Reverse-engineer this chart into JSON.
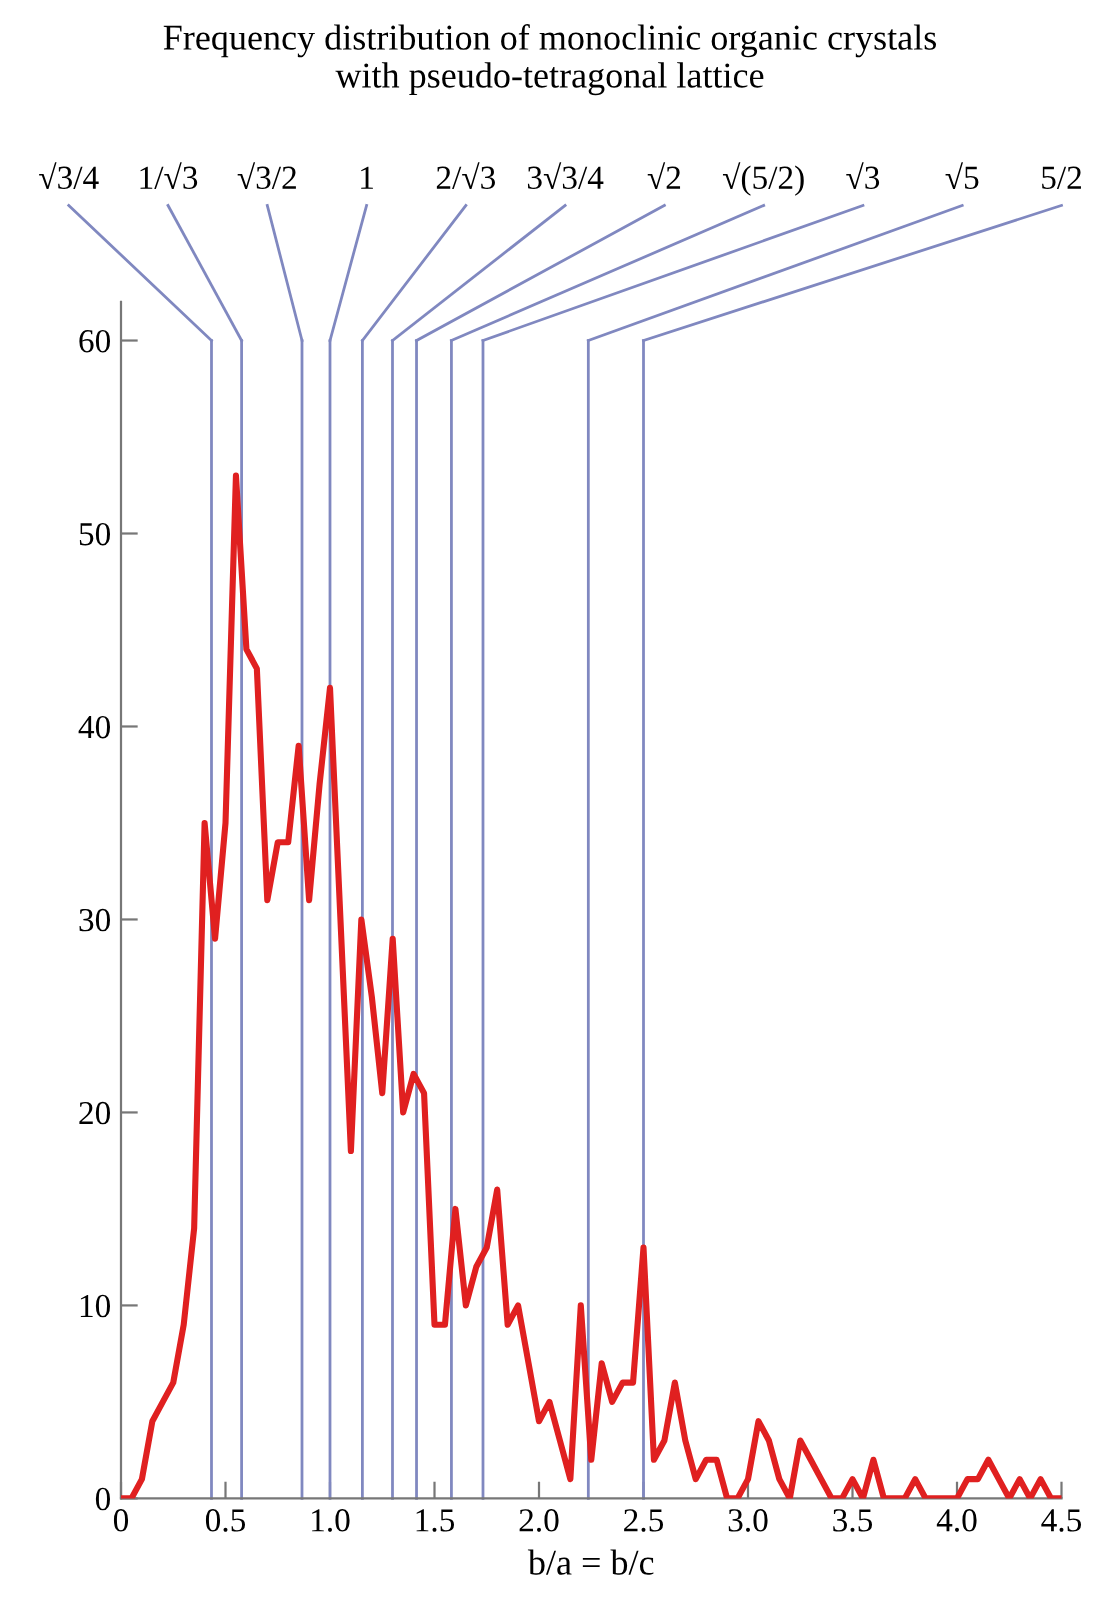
{
  "chart_data": {
    "type": "line",
    "title": "Frequency distribution of monoclinic organic crystals\nwith pseudo-tetragonal lattice",
    "xlabel": "b/a = b/c",
    "x": [
      0,
      0.05,
      0.1,
      0.15,
      0.2,
      0.25,
      0.3,
      0.35,
      0.4,
      0.45,
      0.5,
      0.55,
      0.6,
      0.65,
      0.7,
      0.75,
      0.8,
      0.85,
      0.9,
      0.95,
      1.0,
      1.05,
      1.1,
      1.15,
      1.2,
      1.25,
      1.3,
      1.35,
      1.4,
      1.45,
      1.5,
      1.55,
      1.6,
      1.65,
      1.7,
      1.75,
      1.8,
      1.85,
      1.9,
      1.95,
      2.0,
      2.05,
      2.1,
      2.15,
      2.2,
      2.25,
      2.3,
      2.35,
      2.4,
      2.45,
      2.5,
      2.55,
      2.6,
      2.65,
      2.7,
      2.75,
      2.8,
      2.85,
      2.9,
      2.95,
      3.0,
      3.05,
      3.1,
      3.15,
      3.2,
      3.25,
      3.3,
      3.35,
      3.4,
      3.45,
      3.5,
      3.55,
      3.6,
      3.65,
      3.7,
      3.75,
      3.8,
      3.85,
      3.9,
      3.95,
      4.0,
      4.05,
      4.1,
      4.15,
      4.2,
      4.25,
      4.3,
      4.35,
      4.4,
      4.45,
      4.5
    ],
    "series": [
      {
        "color": "#e02020",
        "values": [
          0,
          0,
          1,
          4,
          5,
          6,
          9,
          14,
          35,
          29,
          35,
          53,
          44,
          43,
          31,
          34,
          34,
          39,
          31,
          37,
          42,
          30,
          18,
          30,
          26,
          21,
          29,
          20,
          22,
          21,
          9,
          9,
          15,
          10,
          12,
          13,
          16,
          9,
          10,
          7,
          4,
          5,
          3,
          1,
          10,
          2,
          7,
          5,
          6,
          6,
          13,
          2,
          3,
          6,
          3,
          1,
          2,
          2,
          0,
          0,
          1,
          4,
          3,
          1,
          0,
          3,
          2,
          1,
          0,
          0,
          1,
          0,
          2,
          0,
          0,
          0,
          1,
          0,
          0,
          0,
          0,
          1,
          1,
          2,
          1,
          0,
          1,
          0,
          1,
          0,
          0
        ]
      }
    ],
    "xlim": [
      0,
      4.5
    ],
    "ylim": [
      0,
      62
    ],
    "xticks": [
      0,
      {
        "value": 0.5,
        "label": "0.5"
      },
      {
        "value": 1,
        "label": "1.0"
      },
      {
        "value": 1.5,
        "label": "1.5"
      },
      {
        "value": 2,
        "label": "2.0"
      },
      {
        "value": 2.5,
        "label": "2.5"
      },
      {
        "value": 3,
        "label": "3.0"
      },
      {
        "value": 3.5,
        "label": "3.5"
      },
      {
        "value": 4,
        "label": "4.0"
      },
      {
        "value": 4.5,
        "label": "4.5"
      }
    ],
    "yticks": [
      0,
      10,
      20,
      30,
      40,
      50,
      60
    ],
    "ref_lines": [
      {
        "axis": "x",
        "value": 0.433,
        "label": "√3/4",
        "color": "#8088c0"
      },
      {
        "axis": "x",
        "value": 0.577,
        "label": "1/√3",
        "color": "#8088c0"
      },
      {
        "axis": "x",
        "value": 0.866,
        "label": "√3/2",
        "color": "#8088c0"
      },
      {
        "axis": "x",
        "value": 1,
        "label": "1",
        "color": "#8088c0"
      },
      {
        "axis": "x",
        "value": 1.155,
        "label": "2/√3",
        "color": "#8088c0"
      },
      {
        "axis": "x",
        "value": 1.299,
        "label": "3√3/4",
        "color": "#8088c0"
      },
      {
        "axis": "x",
        "value": 1.414,
        "label": "√2",
        "color": "#8088c0"
      },
      {
        "axis": "x",
        "value": 1.581,
        "label": "√(5/2)",
        "color": "#8088c0"
      },
      {
        "axis": "x",
        "value": 1.732,
        "label": "√3",
        "color": "#8088c0"
      },
      {
        "axis": "x",
        "value": 2.236,
        "label": "√5",
        "color": "#8088c0"
      },
      {
        "axis": "x",
        "value": 2.5,
        "label": "5/2",
        "color": "#8088c0"
      }
    ],
    "grid": false,
    "legend": false,
    "marker": "none",
    "line_style": "solid"
  }
}
